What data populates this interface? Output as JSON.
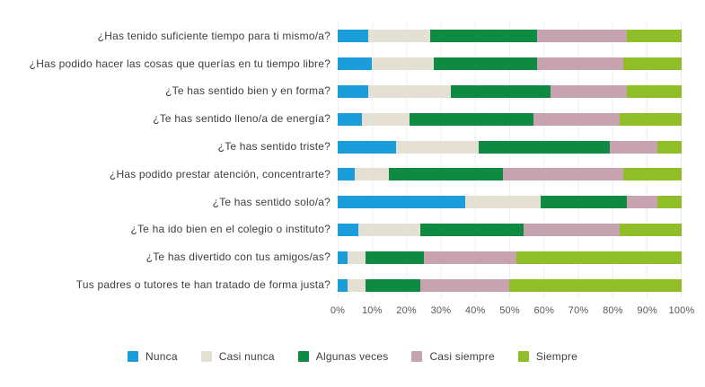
{
  "chart_data": {
    "type": "bar",
    "orientation": "horizontal",
    "stacked": true,
    "stack_total": 100,
    "title": "",
    "xlabel": "",
    "ylabel": "",
    "xlim": [
      0,
      100
    ],
    "grid": true,
    "legend_position": "bottom",
    "x_ticks": [
      "0%",
      "10%",
      "20%",
      "30%",
      "40%",
      "50%",
      "60%",
      "70%",
      "80%",
      "90%",
      "100%"
    ],
    "categories": [
      "¿Has tenido suficiente tiempo para ti mismo/a?",
      "¿Has podido hacer las cosas que querías en tu tiempo libre?",
      "¿Te has sentido bien y en forma?",
      "¿Te has sentido lleno/a de energía?",
      "¿Te has sentido triste?",
      "¿Has podido prestar atención, concentrarte?",
      "¿Te has sentido solo/a?",
      "¿Te ha ido bien en el colegio o instituto?",
      "¿Te has divertido con tus amigos/as?",
      "Tus padres o tutores te han tratado de forma justa?"
    ],
    "series": [
      {
        "name": "Nunca",
        "color": "#1A9DDA",
        "values": [
          9,
          10,
          9,
          7,
          17,
          5,
          37,
          6,
          3,
          3
        ]
      },
      {
        "name": "Casi nunca",
        "color": "#E4E0D4",
        "values": [
          18,
          18,
          24,
          14,
          24,
          10,
          22,
          18,
          5,
          5
        ]
      },
      {
        "name": "Algunas veces",
        "color": "#0E8A42",
        "values": [
          31,
          30,
          29,
          36,
          38,
          33,
          25,
          30,
          17,
          16
        ]
      },
      {
        "name": "Casi siempre",
        "color": "#C6A3AE",
        "values": [
          26,
          25,
          22,
          25,
          14,
          35,
          9,
          28,
          27,
          26
        ]
      },
      {
        "name": "Siempre",
        "color": "#90BE28",
        "values": [
          16,
          17,
          16,
          18,
          7,
          17,
          7,
          18,
          48,
          50
        ]
      }
    ]
  },
  "colors": {
    "gridline": "#EAEFF1",
    "label_text": "#3E3E3E",
    "tick_text": "#54575B",
    "background": "#FFFFFF"
  }
}
